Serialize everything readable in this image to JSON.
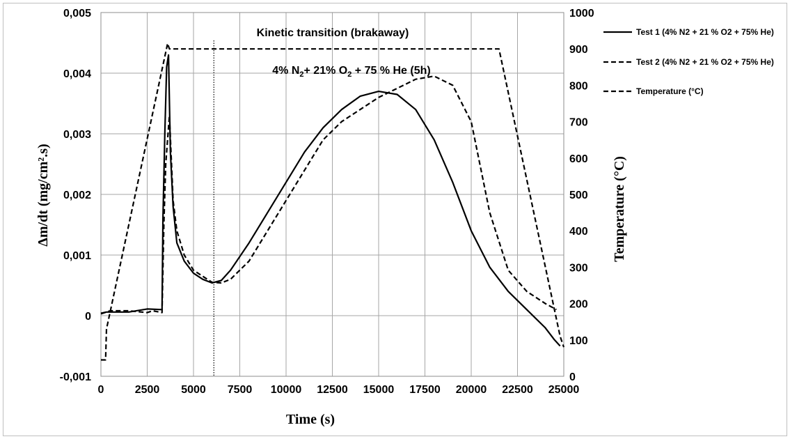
{
  "chart_data": {
    "type": "line",
    "xlabel": "Time (s)",
    "ylabel_left": "Δm/dt (mg/cm².s)",
    "ylabel_right": "Temperature (°C)",
    "xlim": [
      0,
      25000
    ],
    "ylim_left": [
      -0.001,
      0.005
    ],
    "ylim_right": [
      0,
      1000
    ],
    "grid": true,
    "legend_position": "top-right",
    "x_ticks": [
      "0",
      "2500",
      "5000",
      "7500",
      "10000",
      "12500",
      "15000",
      "17500",
      "20000",
      "22500",
      "25000"
    ],
    "y_left_ticks": [
      "-0,001",
      "0",
      "0,001",
      "0,002",
      "0,003",
      "0,004",
      "0,005"
    ],
    "y_right_ticks": [
      "0",
      "100",
      "200",
      "300",
      "400",
      "500",
      "600",
      "700",
      "800",
      "900",
      "1000"
    ],
    "annotations": {
      "transition": "Kinetic transition (brakaway)",
      "atmosphere_a": "4% N",
      "atmosphere_sub1": "2",
      "atmosphere_b": "+ 21% O",
      "atmosphere_sub2": "2",
      "atmosphere_c": " + 75 % He (5h)",
      "transition_time": 6100
    },
    "series": [
      {
        "name": "Test 1 (4% N2 + 21 % O2 + 75% He)",
        "axis": "left",
        "style": "solid",
        "x": [
          0,
          300,
          1500,
          2500,
          3300,
          3350,
          3450,
          3550,
          3650,
          3750,
          3900,
          4100,
          4500,
          5000,
          5500,
          6000,
          6500,
          7000,
          8000,
          9000,
          10000,
          11000,
          12000,
          13000,
          14000,
          15000,
          16000,
          17000,
          18000,
          19000,
          20000,
          21000,
          22000,
          23000,
          24000,
          24500,
          24800
        ],
        "y": [
          4e-05,
          6e-05,
          6e-05,
          0.00011,
          0.0001,
          0.0016,
          0.003,
          0.0041,
          0.0043,
          0.0027,
          0.0018,
          0.0012,
          0.0009,
          0.0007,
          0.0006,
          0.00054,
          0.00058,
          0.00075,
          0.0012,
          0.0017,
          0.0022,
          0.0027,
          0.0031,
          0.0034,
          0.00362,
          0.0037,
          0.00365,
          0.0034,
          0.0029,
          0.0022,
          0.0014,
          0.0008,
          0.0004,
          0.0001,
          -0.0002,
          -0.0004,
          -0.0005
        ]
      },
      {
        "name": "Test 2 (4% N2 + 21 % O2 + 75% He)",
        "axis": "left",
        "style": "dashed",
        "x": [
          0,
          500,
          1500,
          2500,
          2800,
          3300,
          3400,
          3500,
          3700,
          3900,
          4100,
          4500,
          5000,
          5500,
          6000,
          6500,
          7000,
          8000,
          9000,
          10000,
          11000,
          12000,
          13000,
          14000,
          15000,
          16000,
          17000,
          18000,
          19000,
          20000,
          21000,
          22000,
          23000,
          24000,
          24600
        ],
        "y": [
          3e-05,
          8e-05,
          8e-05,
          5e-05,
          8e-05,
          5e-05,
          0.0015,
          0.0025,
          0.0033,
          0.0019,
          0.0014,
          0.001,
          0.00075,
          0.00065,
          0.00055,
          0.00054,
          0.0006,
          0.0009,
          0.0014,
          0.0019,
          0.0024,
          0.0029,
          0.0032,
          0.0034,
          0.0036,
          0.00375,
          0.0039,
          0.00395,
          0.0038,
          0.0032,
          0.0017,
          0.00075,
          0.0004,
          0.0002,
          0.0001
        ]
      },
      {
        "name": "Temperature (°C)",
        "axis": "right",
        "style": "dashed",
        "x": [
          0,
          250,
          300,
          3600,
          3700,
          21500,
          24800,
          25000
        ],
        "y": [
          45,
          45,
          130,
          915,
          900,
          900,
          110,
          80
        ]
      }
    ]
  }
}
